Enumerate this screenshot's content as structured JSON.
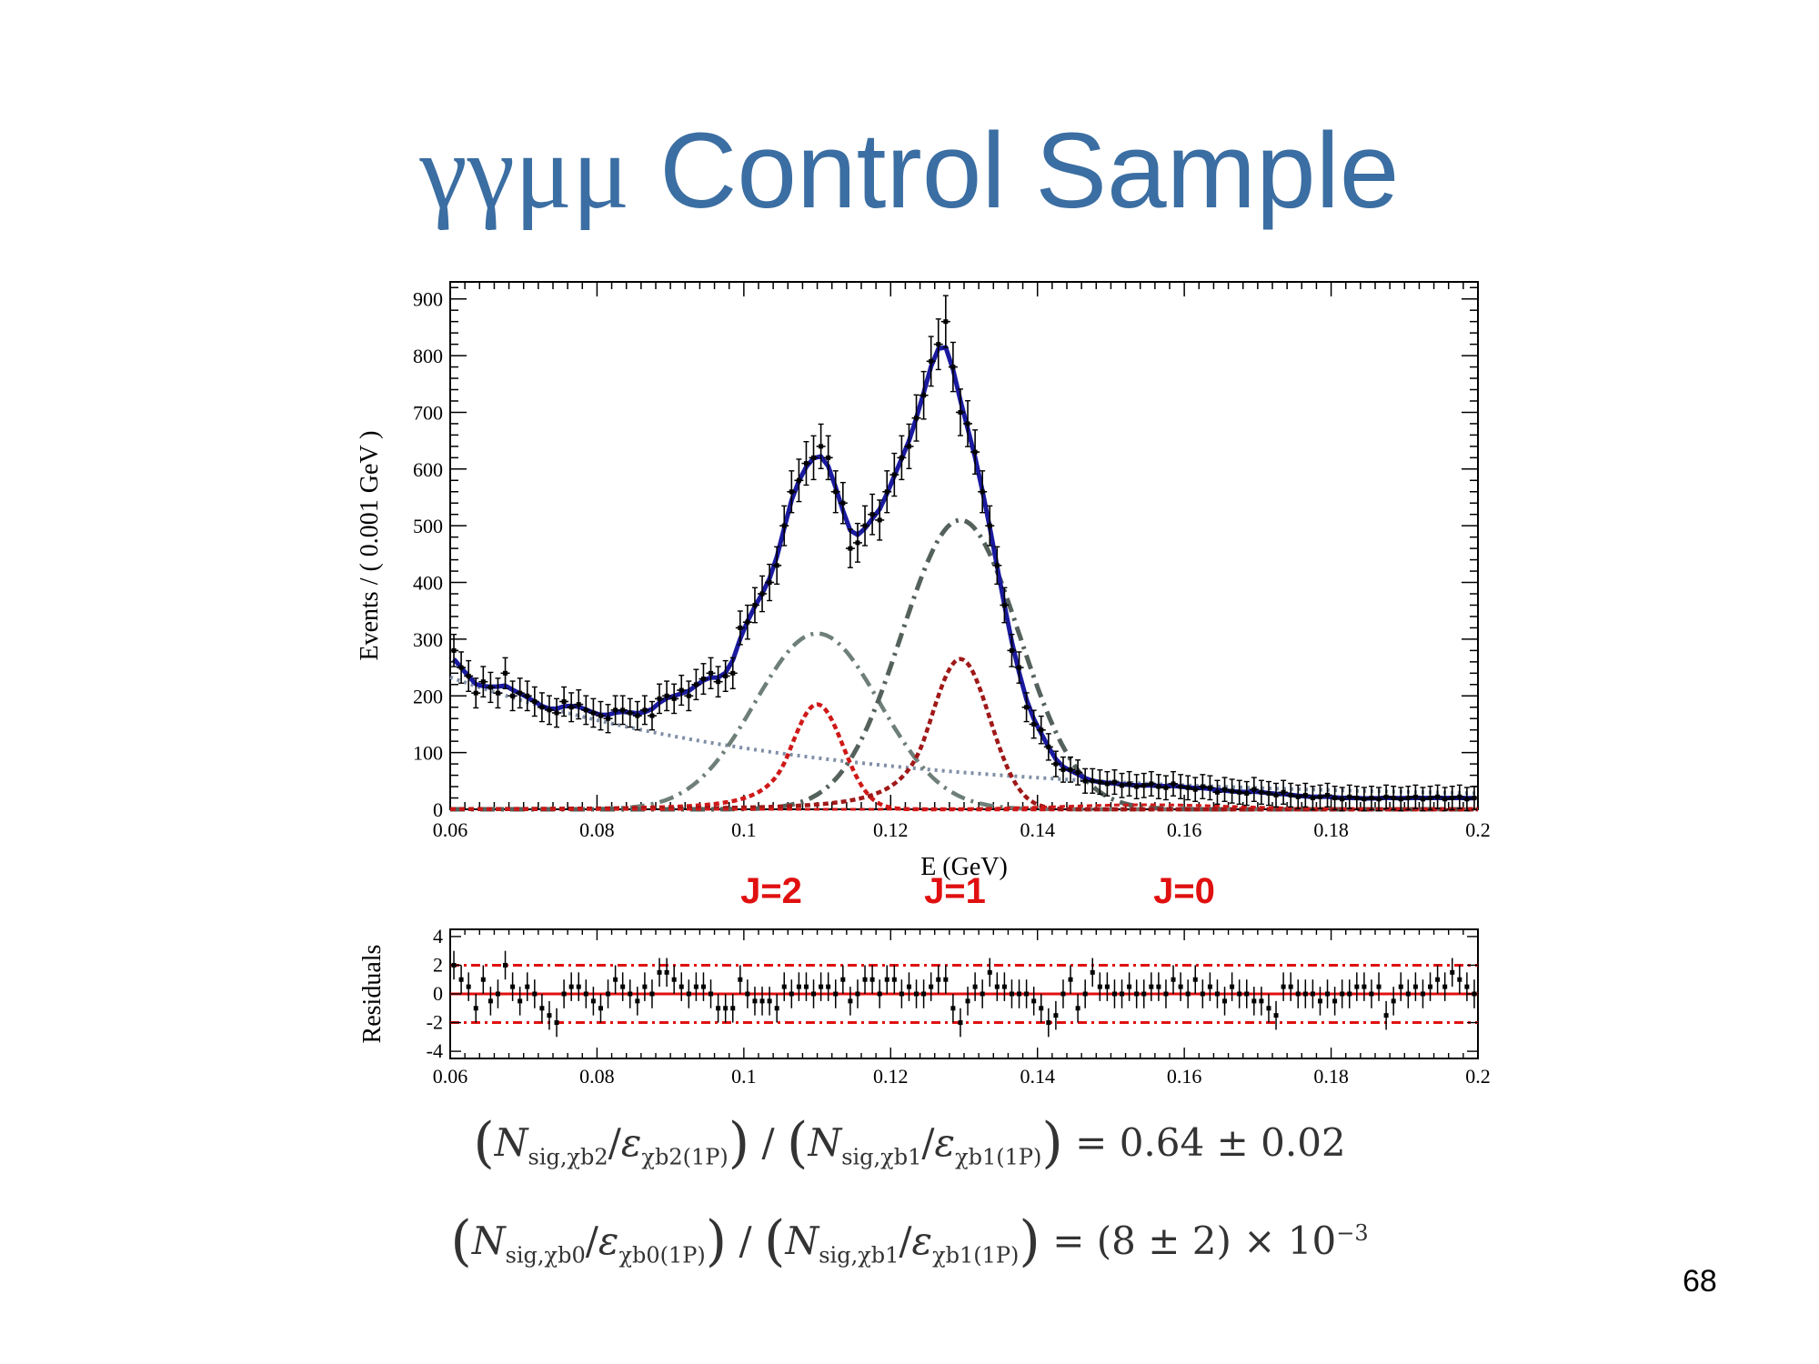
{
  "slide": {
    "title_greek": "γγμμ",
    "title_text": " Control Sample",
    "page_number": "68"
  },
  "colors": {
    "title": "#3b6ea2",
    "total_fit": "#1a1aa0",
    "background": "#7f8fa6",
    "signal_ggcore": "#6e7f78",
    "signal_tail": "#a01818",
    "j_labels": "#e01010",
    "residual_lines": "#e01010"
  },
  "annotations": {
    "j2": "J=2",
    "j1": "J=1",
    "j0": "J=0"
  },
  "formulas": {
    "line1": {
      "num_a": "N",
      "num_a_sub": "sig,χb2",
      "den_a": "ε",
      "den_a_sub": "χb2(1P)",
      "num_b": "N",
      "num_b_sub": "sig,χb1",
      "den_b": "ε",
      "den_b_sub": "χb1(1P)",
      "result": "= 0.64 ± 0.02"
    },
    "line2": {
      "num_a": "N",
      "num_a_sub": "sig,χb0",
      "den_a": "ε",
      "den_a_sub": "χb0(1P)",
      "num_b": "N",
      "num_b_sub": "sig,χb1",
      "den_b": "ε",
      "den_b_sub": "χb1(1P)",
      "result_a": "= (8 ± 2) × 10",
      "result_exp": "−3"
    }
  },
  "chart_data": [
    {
      "type": "scatter",
      "xlabel": "E (GeV)",
      "ylabel": "Events / ( 0.001 GeV )",
      "xlim": [
        0.06,
        0.2
      ],
      "ylim": [
        0,
        930
      ],
      "xticks": [
        0.06,
        0.08,
        0.1,
        0.12,
        0.14,
        0.16,
        0.18,
        0.2
      ],
      "xtick_labels": [
        "0.06",
        "0.08",
        "0.1",
        "0.12",
        "0.14",
        "0.16",
        "0.18",
        "0.2"
      ],
      "yticks": [
        0,
        100,
        200,
        300,
        400,
        500,
        600,
        700,
        800,
        900
      ],
      "ytick_labels": [
        "0",
        "100",
        "200",
        "300",
        "400",
        "500",
        "600",
        "700",
        "800",
        "900"
      ],
      "grid": false,
      "data_points": {
        "x": [
          0.0605,
          0.0615,
          0.0625,
          0.0635,
          0.0645,
          0.0655,
          0.0665,
          0.0675,
          0.0685,
          0.0695,
          0.0705,
          0.0715,
          0.0725,
          0.0735,
          0.0745,
          0.0755,
          0.0765,
          0.0775,
          0.0785,
          0.0795,
          0.0805,
          0.0815,
          0.0825,
          0.0835,
          0.0845,
          0.0855,
          0.0865,
          0.0875,
          0.0885,
          0.0895,
          0.0905,
          0.0915,
          0.0925,
          0.0935,
          0.0945,
          0.0955,
          0.0965,
          0.0975,
          0.0985,
          0.0995,
          0.1005,
          0.1015,
          0.1025,
          0.1035,
          0.1045,
          0.1055,
          0.1065,
          0.1075,
          0.1085,
          0.1095,
          0.1105,
          0.1115,
          0.1125,
          0.1135,
          0.1145,
          0.1155,
          0.1165,
          0.1175,
          0.1185,
          0.1195,
          0.1205,
          0.1215,
          0.1225,
          0.1235,
          0.1245,
          0.1255,
          0.1265,
          0.1275,
          0.1285,
          0.1295,
          0.1305,
          0.1315,
          0.1325,
          0.1335,
          0.1345,
          0.1355,
          0.1365,
          0.1375,
          0.1385,
          0.1395,
          0.1405,
          0.1415,
          0.1425,
          0.1435,
          0.1445,
          0.1455,
          0.1465,
          0.1475,
          0.1485,
          0.1495,
          0.1505,
          0.1515,
          0.1525,
          0.1535,
          0.1545,
          0.1555,
          0.1565,
          0.1575,
          0.1585,
          0.1595,
          0.1605,
          0.1615,
          0.1625,
          0.1635,
          0.1645,
          0.1655,
          0.1665,
          0.1675,
          0.1685,
          0.1695,
          0.1705,
          0.1715,
          0.1725,
          0.1735,
          0.1745,
          0.1755,
          0.1765,
          0.1775,
          0.1785,
          0.1795,
          0.1805,
          0.1815,
          0.1825,
          0.1835,
          0.1845,
          0.1855,
          0.1865,
          0.1875,
          0.1885,
          0.1895,
          0.1905,
          0.1915,
          0.1925,
          0.1935,
          0.1945,
          0.1955,
          0.1965,
          0.1975,
          0.1985,
          0.1995
        ],
        "y": [
          280,
          250,
          235,
          205,
          225,
          215,
          205,
          240,
          200,
          205,
          200,
          190,
          180,
          175,
          170,
          190,
          180,
          185,
          175,
          170,
          165,
          160,
          175,
          175,
          170,
          165,
          175,
          165,
          195,
          200,
          195,
          210,
          200,
          220,
          230,
          240,
          225,
          235,
          240,
          320,
          330,
          360,
          380,
          400,
          430,
          500,
          560,
          580,
          610,
          620,
          640,
          620,
          560,
          540,
          460,
          470,
          500,
          520,
          510,
          560,
          590,
          620,
          640,
          690,
          730,
          790,
          820,
          860,
          780,
          700,
          680,
          630,
          560,
          500,
          430,
          360,
          280,
          250,
          180,
          150,
          140,
          110,
          80,
          70,
          70,
          65,
          50,
          50,
          48,
          45,
          48,
          42,
          45,
          40,
          42,
          45,
          40,
          38,
          45,
          40,
          38,
          35,
          40,
          38,
          30,
          35,
          32,
          30,
          28,
          35,
          30,
          28,
          25,
          30,
          25,
          22,
          25,
          20,
          22,
          25,
          20,
          18,
          22,
          20,
          18,
          20,
          18,
          22,
          20,
          18,
          20,
          22,
          18,
          20,
          22,
          18,
          20,
          22,
          18,
          20
        ],
        "yerr": 20
      },
      "components": [
        {
          "name": "",
          "style": "solid",
          "color": "#1a1aa0"
        },
        {
          "name": "",
          "style": "dotted",
          "color": "#7f8fa6"
        },
        {
          "name": "",
          "style": "dash-dot",
          "color": "#6e7f78"
        },
        {
          "name": "",
          "style": "dashed",
          "color": "#a01818"
        }
      ]
    },
    {
      "type": "scatter",
      "xlabel": "",
      "ylabel": "Residuals",
      "xlim": [
        0.06,
        0.2
      ],
      "ylim": [
        -4.5,
        4.5
      ],
      "xticks": [
        0.06,
        0.08,
        0.1,
        0.12,
        0.14,
        0.16,
        0.18,
        0.2
      ],
      "xtick_labels": [
        "0.06",
        "0.08",
        "0.1",
        "0.12",
        "0.14",
        "0.16",
        "0.18",
        "0.2"
      ],
      "yticks": [
        4,
        2,
        0,
        -2,
        -4
      ],
      "ytick_labels": [
        "4",
        "2",
        "0",
        "-2",
        "-4"
      ],
      "reference_lines": [
        0,
        2,
        -2
      ],
      "grid": false,
      "data_points": {
        "x": [
          0.0605,
          0.0615,
          0.0625,
          0.0635,
          0.0645,
          0.0655,
          0.0665,
          0.0675,
          0.0685,
          0.0695,
          0.0705,
          0.0715,
          0.0725,
          0.0735,
          0.0745,
          0.0755,
          0.0765,
          0.0775,
          0.0785,
          0.0795,
          0.0805,
          0.0815,
          0.0825,
          0.0835,
          0.0845,
          0.0855,
          0.0865,
          0.0875,
          0.0885,
          0.0895,
          0.0905,
          0.0915,
          0.0925,
          0.0935,
          0.0945,
          0.0955,
          0.0965,
          0.0975,
          0.0985,
          0.0995,
          0.1005,
          0.1015,
          0.1025,
          0.1035,
          0.1045,
          0.1055,
          0.1065,
          0.1075,
          0.1085,
          0.1095,
          0.1105,
          0.1115,
          0.1125,
          0.1135,
          0.1145,
          0.1155,
          0.1165,
          0.1175,
          0.1185,
          0.1195,
          0.1205,
          0.1215,
          0.1225,
          0.1235,
          0.1245,
          0.1255,
          0.1265,
          0.1275,
          0.1285,
          0.1295,
          0.1305,
          0.1315,
          0.1325,
          0.1335,
          0.1345,
          0.1355,
          0.1365,
          0.1375,
          0.1385,
          0.1395,
          0.1405,
          0.1415,
          0.1425,
          0.1435,
          0.1445,
          0.1455,
          0.1465,
          0.1475,
          0.1485,
          0.1495,
          0.1505,
          0.1515,
          0.1525,
          0.1535,
          0.1545,
          0.1555,
          0.1565,
          0.1575,
          0.1585,
          0.1595,
          0.1605,
          0.1615,
          0.1625,
          0.1635,
          0.1645,
          0.1655,
          0.1665,
          0.1675,
          0.1685,
          0.1695,
          0.1705,
          0.1715,
          0.1725,
          0.1735,
          0.1745,
          0.1755,
          0.1765,
          0.1775,
          0.1785,
          0.1795,
          0.1805,
          0.1815,
          0.1825,
          0.1835,
          0.1845,
          0.1855,
          0.1865,
          0.1875,
          0.1885,
          0.1895,
          0.1905,
          0.1915,
          0.1925,
          0.1935,
          0.1945,
          0.1955,
          0.1965,
          0.1975,
          0.1985,
          0.1995
        ],
        "y": [
          2.0,
          1.0,
          0.5,
          -1.0,
          1.0,
          -0.5,
          0.0,
          2.0,
          0.5,
          -0.5,
          0.5,
          0.0,
          -1.0,
          -1.5,
          -2.0,
          0.0,
          0.5,
          0.5,
          0.0,
          -0.5,
          -1.0,
          0.0,
          1.0,
          0.5,
          0.0,
          -0.5,
          0.5,
          0.0,
          1.5,
          1.5,
          1.0,
          0.5,
          0.0,
          0.5,
          0.5,
          0.0,
          -1.0,
          -1.0,
          -1.0,
          1.0,
          0.0,
          -0.5,
          -0.5,
          -0.5,
          -1.0,
          0.5,
          0.0,
          0.5,
          0.5,
          0.0,
          0.5,
          0.5,
          0.0,
          1.0,
          -0.5,
          0.0,
          1.0,
          1.0,
          0.0,
          1.0,
          1.0,
          0.0,
          0.5,
          0.0,
          0.0,
          0.5,
          1.0,
          1.0,
          -1.0,
          -2.0,
          -0.5,
          0.5,
          0.0,
          1.5,
          0.5,
          0.5,
          0.0,
          0.0,
          0.0,
          -0.5,
          -1.0,
          -2.0,
          -1.5,
          0.0,
          1.0,
          -1.0,
          0.0,
          1.5,
          0.5,
          0.5,
          0.0,
          0.0,
          0.5,
          0.0,
          0.0,
          0.5,
          0.5,
          0.0,
          1.0,
          0.5,
          0.0,
          1.0,
          0.0,
          0.5,
          0.0,
          -0.5,
          0.5,
          0.0,
          0.0,
          -0.5,
          -0.5,
          -1.0,
          -1.5,
          0.5,
          0.5,
          0.0,
          0.0,
          0.0,
          -0.5,
          0.0,
          -0.5,
          0.0,
          0.0,
          0.5,
          0.5,
          0.0,
          0.5,
          -1.5,
          -0.5,
          0.5,
          0.0,
          0.5,
          0.0,
          0.5,
          1.0,
          0.5,
          1.5,
          1.0,
          0.5,
          0.0
        ],
        "yerr": 1.0
      }
    }
  ]
}
